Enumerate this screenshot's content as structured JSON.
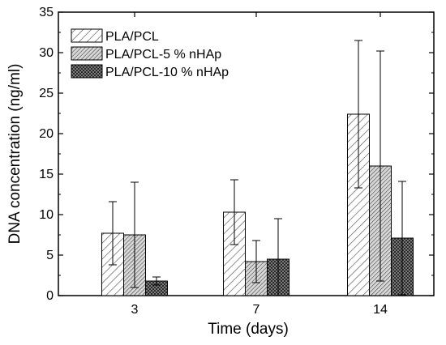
{
  "chart_data": {
    "type": "bar",
    "categories": [
      "3",
      "7",
      "14"
    ],
    "series": [
      {
        "name": "PLA/PCL",
        "values": [
          7.7,
          10.3,
          22.4
        ],
        "errors": [
          3.9,
          4.0,
          9.1
        ],
        "pattern": "diagonal-sparse"
      },
      {
        "name": "PLA/PCL-5 % nHAp",
        "values": [
          7.5,
          4.2,
          16.0
        ],
        "errors": [
          6.5,
          2.6,
          14.2
        ],
        "pattern": "diagonal-dense"
      },
      {
        "name": "PLA/PCL-10 % nHAp",
        "values": [
          1.8,
          4.5,
          7.1
        ],
        "errors": [
          0.5,
          5.0,
          7.0
        ],
        "pattern": "crosshatch"
      }
    ],
    "xlabel": "Time (days)",
    "ylabel": "DNA concentration (ng/ml)",
    "ylim": [
      0,
      35
    ],
    "yticks": [
      0,
      5,
      10,
      15,
      20,
      25,
      30,
      35
    ],
    "grid": false,
    "legend_position": "top-left"
  }
}
